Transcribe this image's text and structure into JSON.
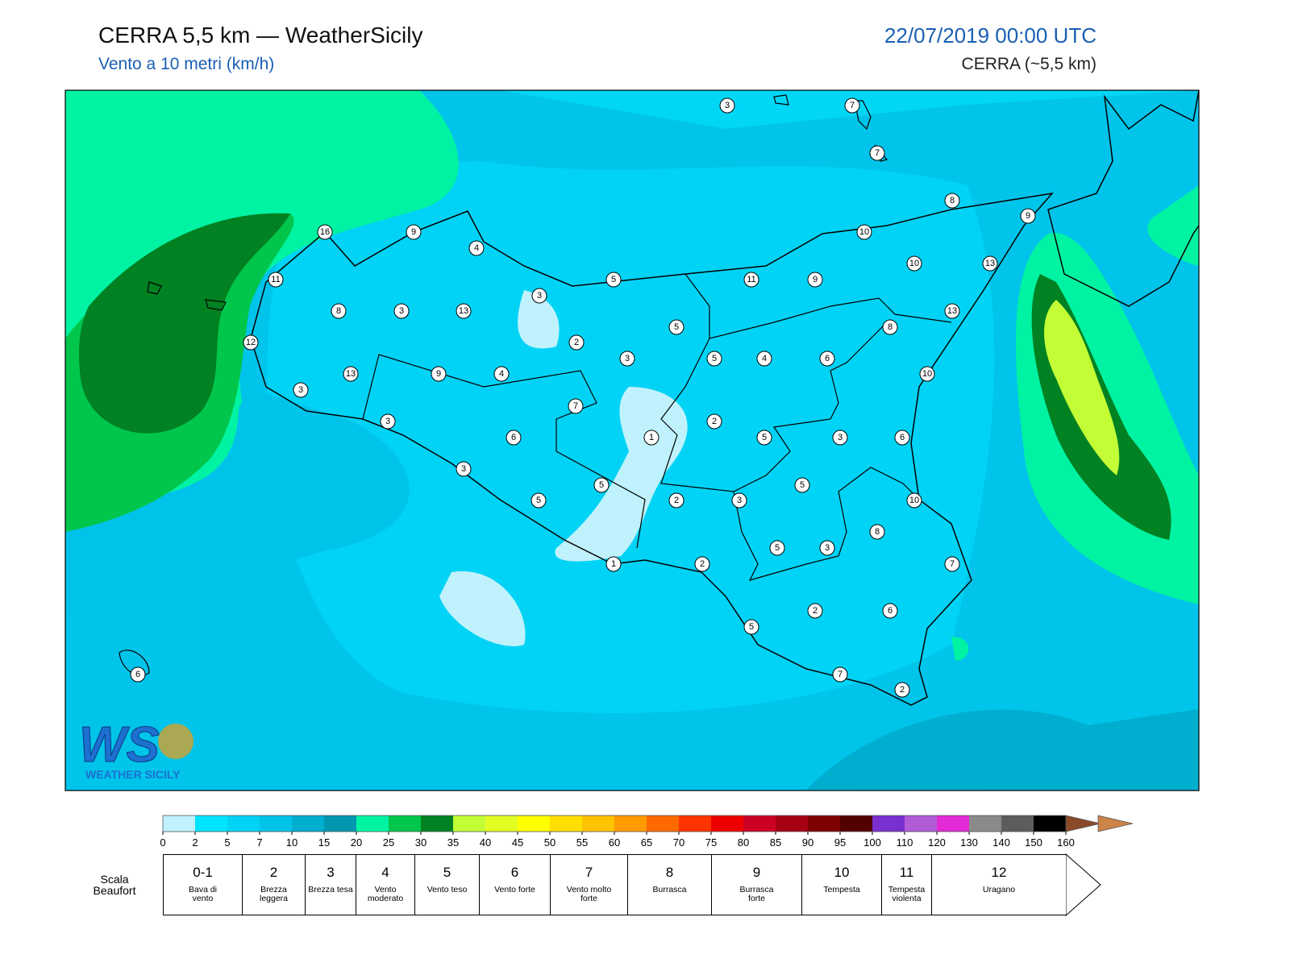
{
  "header": {
    "title": "CERRA 5,5 km — WeatherSicily",
    "subtitle": "Vento a 10 metri (km/h)",
    "valid_time": "22/07/2019 00:00 UTC",
    "model": "CERRA (~5,5 km)"
  },
  "map": {
    "station_values": [
      3,
      7,
      7,
      8,
      9,
      16,
      9,
      4,
      10,
      11,
      5,
      11,
      9,
      10,
      13,
      3,
      8,
      3,
      13,
      13,
      5,
      8,
      12,
      2,
      3,
      5,
      4,
      6,
      13,
      9,
      4,
      10,
      3,
      7,
      3,
      2,
      6,
      1,
      5,
      3,
      6,
      3,
      5,
      5,
      5,
      2,
      3,
      10,
      8,
      5,
      3,
      1,
      2,
      7,
      2,
      6,
      5,
      7,
      2,
      6
    ]
  },
  "logo": {
    "mark": "WS",
    "name": "WEATHER SICILY"
  },
  "colorbar": {
    "ticks": [
      0,
      2,
      5,
      7,
      10,
      15,
      20,
      25,
      30,
      35,
      40,
      45,
      50,
      55,
      60,
      65,
      70,
      75,
      80,
      85,
      90,
      95,
      100,
      110,
      120,
      130,
      140,
      150,
      160
    ],
    "colors": [
      "#bff2fd",
      "#00e4fe",
      "#00d3f5",
      "#00c3ea",
      "#00aecf",
      "#0096b0",
      "#00f3a2",
      "#00c64c",
      "#008122",
      "#c2fd35",
      "#e2fd24",
      "#ffff00",
      "#ffde00",
      "#ffc200",
      "#ff9a00",
      "#ff6a00",
      "#ff3400",
      "#ee0000",
      "#cc0024",
      "#a60012",
      "#7e0000",
      "#520000",
      "#7a2fd0",
      "#b25bd6",
      "#e22ad6",
      "#8a8a8a",
      "#5c5c5c",
      "#000000",
      "#8b4a2a",
      "#cc8448"
    ]
  },
  "beaufort": {
    "title": "Scala Beaufort",
    "levels": [
      {
        "force": "0-1",
        "label": "Bava di vento"
      },
      {
        "force": "2",
        "label": "Brezza leggera"
      },
      {
        "force": "3",
        "label": "Brezza tesa"
      },
      {
        "force": "4",
        "label": "Vento moderato"
      },
      {
        "force": "5",
        "label": "Vento teso"
      },
      {
        "force": "6",
        "label": "Vento forte"
      },
      {
        "force": "7",
        "label": "Vento molto forte"
      },
      {
        "force": "8",
        "label": "Burrasca"
      },
      {
        "force": "9",
        "label": "Burrasca forte"
      },
      {
        "force": "10",
        "label": "Tempesta"
      },
      {
        "force": "11",
        "label": "Tempesta violenta"
      },
      {
        "force": "12",
        "label": "Uragano"
      }
    ]
  }
}
